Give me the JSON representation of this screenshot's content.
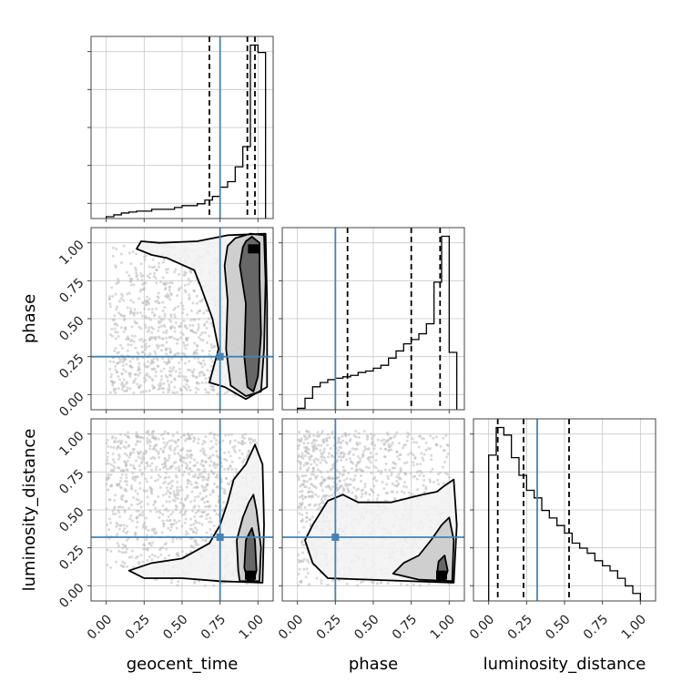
{
  "chart_data": {
    "type": "corner",
    "parameters": [
      "geocent_time",
      "phase",
      "luminosity_distance"
    ],
    "axis_range": [
      -0.1,
      1.1
    ],
    "ticks": [
      0.0,
      0.25,
      0.5,
      0.75,
      1.0
    ],
    "tick_labels": [
      "0.00",
      "0.25",
      "0.50",
      "0.75",
      "1.00"
    ],
    "grid": true,
    "colors": {
      "truth": "#4682b4",
      "hist": "#000000",
      "scatter": "#bbbbbb",
      "contour": "#000000"
    },
    "truths": {
      "geocent_time": 0.75,
      "phase": 0.25,
      "luminosity_distance": 0.32
    },
    "quantiles": {
      "geocent_time": [
        0.68,
        0.93,
        0.98
      ],
      "phase": [
        0.33,
        0.75,
        0.94
      ],
      "luminosity_distance": [
        0.06,
        0.23,
        0.53
      ]
    },
    "histograms": {
      "geocent_time": {
        "bin_edges": [
          0.0,
          0.05,
          0.1,
          0.15,
          0.2,
          0.25,
          0.3,
          0.35,
          0.4,
          0.45,
          0.5,
          0.55,
          0.6,
          0.65,
          0.7,
          0.75,
          0.8,
          0.85,
          0.9,
          0.95,
          1.0,
          1.05
        ],
        "density": [
          0.1,
          0.2,
          0.3,
          0.35,
          0.4,
          0.4,
          0.5,
          0.5,
          0.5,
          0.6,
          0.7,
          0.7,
          0.8,
          1.0,
          1.2,
          1.7,
          2.0,
          2.8,
          3.9,
          9.4,
          9.0
        ]
      },
      "phase": {
        "bin_edges": [
          0.0,
          0.05,
          0.1,
          0.15,
          0.2,
          0.25,
          0.3,
          0.35,
          0.4,
          0.45,
          0.5,
          0.55,
          0.6,
          0.65,
          0.7,
          0.75,
          0.8,
          0.85,
          0.9,
          0.95,
          1.0,
          1.05
        ],
        "density": [
          0.1,
          0.8,
          1.6,
          1.9,
          2.1,
          2.2,
          2.3,
          2.4,
          2.6,
          2.7,
          2.9,
          3.1,
          3.6,
          4.1,
          4.6,
          4.9,
          5.3,
          6.0,
          8.9,
          12.1,
          4.0
        ]
      },
      "luminosity_distance": {
        "bin_edges": [
          0.0,
          0.05,
          0.1,
          0.15,
          0.2,
          0.25,
          0.3,
          0.35,
          0.4,
          0.45,
          0.5,
          0.55,
          0.6,
          0.65,
          0.7,
          0.75,
          0.8,
          0.85,
          0.9,
          0.95,
          1.0
        ],
        "density": [
          5.8,
          6.9,
          6.6,
          5.7,
          5.0,
          4.4,
          4.1,
          3.6,
          3.3,
          3.0,
          2.7,
          2.3,
          2.1,
          1.9,
          1.6,
          1.4,
          1.2,
          0.9,
          0.6,
          0.3
        ]
      }
    },
    "pair_plots": [
      {
        "x": "geocent_time",
        "y": "phase",
        "mode": [
          0.97,
          0.96
        ],
        "contours": [
          [
            [
              0.92,
              1.01
            ],
            [
              0.96,
              1.04
            ],
            [
              1.01,
              1.0
            ],
            [
              1.01,
              0.78
            ],
            [
              1.02,
              0.4
            ],
            [
              1.0,
              0.12
            ],
            [
              0.97,
              0.02
            ],
            [
              0.93,
              0.05
            ],
            [
              0.91,
              0.25
            ],
            [
              0.92,
              0.6
            ],
            [
              0.88,
              0.85
            ],
            [
              0.9,
              0.97
            ]
          ],
          [
            [
              0.85,
              1.03
            ],
            [
              0.95,
              1.06
            ],
            [
              1.04,
              1.05
            ],
            [
              1.05,
              0.75
            ],
            [
              1.04,
              0.3
            ],
            [
              1.02,
              0.02
            ],
            [
              0.92,
              -0.01
            ],
            [
              0.82,
              0.06
            ],
            [
              0.79,
              0.3
            ],
            [
              0.8,
              0.62
            ],
            [
              0.78,
              0.85
            ],
            [
              0.8,
              0.98
            ]
          ],
          [
            [
              0.6,
              1.01
            ],
            [
              0.8,
              1.05
            ],
            [
              1.05,
              1.06
            ],
            [
              1.06,
              0.6
            ],
            [
              1.06,
              0.05
            ],
            [
              0.92,
              -0.03
            ],
            [
              0.78,
              0.05
            ],
            [
              0.68,
              0.08
            ],
            [
              0.74,
              0.3
            ],
            [
              0.7,
              0.5
            ],
            [
              0.62,
              0.72
            ],
            [
              0.58,
              0.82
            ],
            [
              0.4,
              0.9
            ],
            [
              0.3,
              0.92
            ],
            [
              0.2,
              0.96
            ],
            [
              0.23,
              1.01
            ],
            [
              0.35,
              1.0
            ]
          ]
        ],
        "scatter": {
          "n": 1100,
          "seed": 7
        }
      },
      {
        "x": "geocent_time",
        "y": "luminosity_distance",
        "mode": [
          0.95,
          0.07
        ],
        "contours": [
          [
            [
              0.93,
              0.04
            ],
            [
              0.97,
              0.03
            ],
            [
              0.99,
              0.1
            ],
            [
              0.98,
              0.3
            ],
            [
              0.96,
              0.38
            ],
            [
              0.92,
              0.3
            ],
            [
              0.91,
              0.12
            ]
          ],
          [
            [
              0.88,
              0.03
            ],
            [
              1.01,
              0.03
            ],
            [
              1.02,
              0.25
            ],
            [
              0.99,
              0.5
            ],
            [
              0.97,
              0.6
            ],
            [
              0.94,
              0.55
            ],
            [
              0.9,
              0.45
            ],
            [
              0.86,
              0.3
            ],
            [
              0.87,
              0.1
            ]
          ],
          [
            [
              0.75,
              0.03
            ],
            [
              1.03,
              0.02
            ],
            [
              1.04,
              0.4
            ],
            [
              1.03,
              0.8
            ],
            [
              0.98,
              0.93
            ],
            [
              0.92,
              0.8
            ],
            [
              0.84,
              0.7
            ],
            [
              0.8,
              0.55
            ],
            [
              0.75,
              0.4
            ],
            [
              0.68,
              0.28
            ],
            [
              0.5,
              0.18
            ],
            [
              0.3,
              0.15
            ],
            [
              0.15,
              0.1
            ],
            [
              0.25,
              0.05
            ],
            [
              0.5,
              0.05
            ]
          ]
        ],
        "scatter": {
          "n": 1100,
          "seed": 13
        }
      },
      {
        "x": "phase",
        "y": "luminosity_distance",
        "mode": [
          0.95,
          0.07
        ],
        "contours": [
          [
            [
              0.93,
              0.04
            ],
            [
              0.97,
              0.04
            ],
            [
              0.99,
              0.1
            ],
            [
              0.97,
              0.2
            ],
            [
              0.93,
              0.16
            ],
            [
              0.92,
              0.08
            ]
          ],
          [
            [
              0.8,
              0.04
            ],
            [
              1.02,
              0.03
            ],
            [
              1.03,
              0.3
            ],
            [
              1.0,
              0.45
            ],
            [
              0.95,
              0.4
            ],
            [
              0.88,
              0.3
            ],
            [
              0.8,
              0.2
            ],
            [
              0.7,
              0.15
            ],
            [
              0.63,
              0.08
            ]
          ],
          [
            [
              0.2,
              0.05
            ],
            [
              1.03,
              0.02
            ],
            [
              1.05,
              0.4
            ],
            [
              1.03,
              0.7
            ],
            [
              0.97,
              0.66
            ],
            [
              0.92,
              0.62
            ],
            [
              0.82,
              0.6
            ],
            [
              0.62,
              0.55
            ],
            [
              0.4,
              0.55
            ],
            [
              0.3,
              0.6
            ],
            [
              0.2,
              0.56
            ],
            [
              0.1,
              0.4
            ],
            [
              0.05,
              0.3
            ],
            [
              0.1,
              0.15
            ]
          ]
        ],
        "scatter": {
          "n": 1100,
          "seed": 29
        }
      }
    ]
  }
}
